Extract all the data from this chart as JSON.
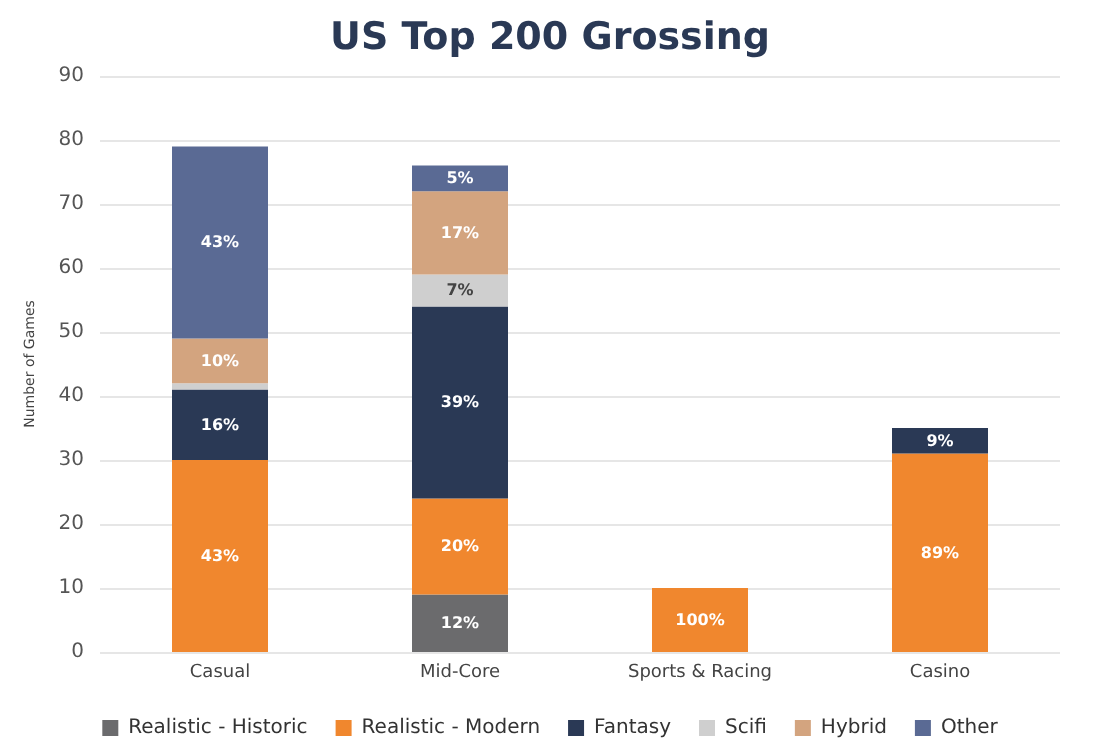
{
  "chart_data": {
    "type": "bar",
    "title": "US Top 200 Grossing",
    "ylabel": "Number of Games",
    "stacked": true,
    "categories": [
      "Casual",
      "Mid-Core",
      "Sports & Racing",
      "Casino"
    ],
    "series": [
      {
        "name": "Realistic - Historic",
        "color": "#6b6b6d",
        "values": [
          0,
          9,
          0,
          0
        ]
      },
      {
        "name": "Realistic - Modern",
        "color": "#f0872e",
        "values": [
          30,
          15,
          10,
          31
        ]
      },
      {
        "name": "Fantasy",
        "color": "#2a3955",
        "values": [
          11,
          30,
          0,
          4
        ]
      },
      {
        "name": "Scifi",
        "color": "#cfcfcf",
        "values": [
          1,
          5,
          0,
          0
        ]
      },
      {
        "name": "Hybrid",
        "color": "#d3a47f",
        "values": [
          7,
          13,
          0,
          0
        ]
      },
      {
        "name": "Other",
        "color": "#5a6a94",
        "values": [
          30,
          4,
          0,
          0
        ]
      }
    ],
    "annotations": [
      "43%",
      {
        "text": "16%",
        "x": "Casual",
        "y": 41
      },
      {
        "text": "10%",
        "x": "Casual",
        "y": 49
      },
      "43%",
      {
        "text": "12%",
        "x": "Mid-Core",
        "y": 9
      },
      {
        "text": "20%",
        "x": "Mid-Core",
        "y": 24
      },
      "39%",
      {
        "text": "7%",
        "x": "Mid-Core",
        "y": 59
      },
      {
        "text": "17%",
        "x": "Mid-Core",
        "y": 72
      },
      {
        "text": "5%",
        "x": "Mid-Core",
        "y": 76
      },
      {
        "text": "100%",
        "x": "Sports & Racing",
        "y": 10
      },
      "89%",
      {
        "text": "9%",
        "x": "Casino",
        "y": 35
      }
    ],
    "ylim": [
      0,
      90
    ],
    "yticks": [
      0,
      10,
      20,
      30,
      40,
      50,
      60,
      70,
      80,
      90
    ],
    "grid": "y",
    "legend": "bottom"
  }
}
